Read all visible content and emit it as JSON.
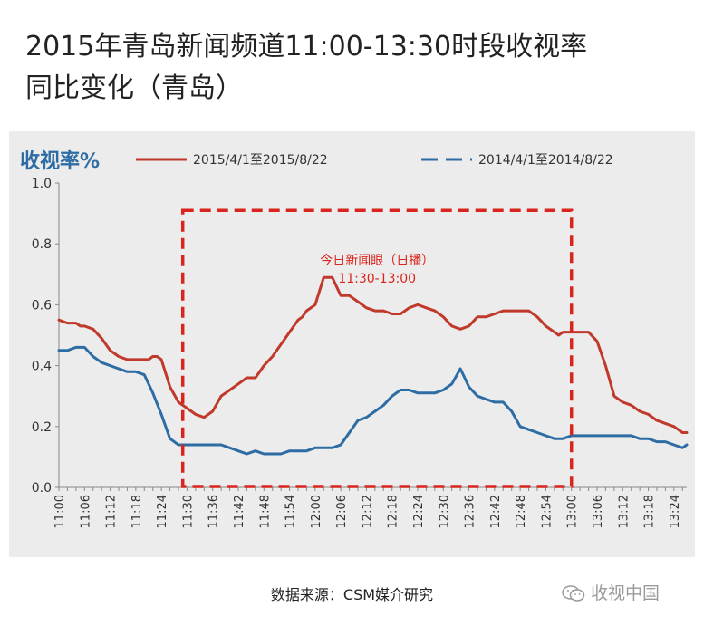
{
  "header": {
    "title_line1": "2015年青岛新闻频道11:00-13:30时段收视率",
    "title_line2": "同比变化（青岛）"
  },
  "chart_data": {
    "type": "line",
    "ylabel": "收视率%",
    "ylim": [
      0,
      1.0
    ],
    "yticks": [
      "0.0",
      "0.2",
      "0.4",
      "0.6",
      "0.8",
      "1.0"
    ],
    "xlabels": [
      "11:00",
      "11:06",
      "11:12",
      "11:18",
      "11:24",
      "11:30",
      "11:36",
      "11:42",
      "11:48",
      "11:54",
      "12:00",
      "12:06",
      "12:12",
      "12:18",
      "12:24",
      "12:30",
      "12:36",
      "12:42",
      "12:48",
      "12:54",
      "13:00",
      "13:06",
      "13:12",
      "13:18",
      "13:24"
    ],
    "x_start_minute": 0,
    "x_end_minute": 147,
    "series": [
      {
        "name": "2015/4/1至2015/8/22",
        "color": "#c0392b",
        "style": "solid",
        "x": [
          0,
          2,
          4,
          5,
          6,
          8,
          10,
          12,
          14,
          16,
          18,
          20,
          21,
          22,
          23,
          24,
          26,
          28,
          30,
          32,
          34,
          36,
          38,
          40,
          42,
          44,
          46,
          48,
          50,
          52,
          54,
          56,
          57,
          58,
          60,
          62,
          64,
          66,
          68,
          70,
          72,
          74,
          76,
          78,
          80,
          82,
          84,
          86,
          88,
          90,
          92,
          94,
          96,
          98,
          100,
          102,
          104,
          106,
          108,
          110,
          112,
          114,
          116,
          117,
          118,
          120,
          122,
          124,
          126,
          128,
          130,
          132,
          134,
          136,
          138,
          140,
          142,
          144,
          146,
          147
        ],
        "y": [
          0.55,
          0.54,
          0.54,
          0.53,
          0.53,
          0.52,
          0.49,
          0.45,
          0.43,
          0.42,
          0.42,
          0.42,
          0.42,
          0.43,
          0.43,
          0.42,
          0.33,
          0.28,
          0.26,
          0.24,
          0.23,
          0.25,
          0.3,
          0.32,
          0.34,
          0.36,
          0.36,
          0.4,
          0.43,
          0.47,
          0.51,
          0.55,
          0.56,
          0.58,
          0.6,
          0.69,
          0.69,
          0.63,
          0.63,
          0.61,
          0.59,
          0.58,
          0.58,
          0.57,
          0.57,
          0.59,
          0.6,
          0.59,
          0.58,
          0.56,
          0.53,
          0.52,
          0.53,
          0.56,
          0.56,
          0.57,
          0.58,
          0.58,
          0.58,
          0.58,
          0.56,
          0.53,
          0.51,
          0.5,
          0.51,
          0.51,
          0.51,
          0.51,
          0.48,
          0.4,
          0.3,
          0.28,
          0.27,
          0.25,
          0.24,
          0.22,
          0.21,
          0.2,
          0.18,
          0.18
        ]
      },
      {
        "name": "2014/4/1至2014/8/22",
        "color": "#2e6da4",
        "style": "dashed",
        "x": [
          0,
          2,
          4,
          6,
          8,
          10,
          12,
          14,
          16,
          18,
          20,
          22,
          24,
          26,
          28,
          30,
          32,
          34,
          36,
          38,
          40,
          42,
          44,
          46,
          48,
          50,
          52,
          54,
          56,
          58,
          60,
          62,
          64,
          66,
          68,
          70,
          72,
          74,
          76,
          78,
          80,
          82,
          84,
          86,
          88,
          90,
          92,
          94,
          96,
          98,
          100,
          102,
          104,
          106,
          108,
          110,
          112,
          114,
          116,
          118,
          120,
          122,
          124,
          126,
          128,
          130,
          132,
          134,
          136,
          138,
          140,
          142,
          144,
          146,
          147
        ],
        "y": [
          0.45,
          0.45,
          0.46,
          0.46,
          0.43,
          0.41,
          0.4,
          0.39,
          0.38,
          0.38,
          0.37,
          0.31,
          0.24,
          0.16,
          0.14,
          0.14,
          0.14,
          0.14,
          0.14,
          0.14,
          0.13,
          0.12,
          0.11,
          0.12,
          0.11,
          0.11,
          0.11,
          0.12,
          0.12,
          0.12,
          0.13,
          0.13,
          0.13,
          0.14,
          0.18,
          0.22,
          0.23,
          0.25,
          0.27,
          0.3,
          0.32,
          0.32,
          0.31,
          0.31,
          0.31,
          0.32,
          0.34,
          0.39,
          0.33,
          0.3,
          0.29,
          0.28,
          0.28,
          0.25,
          0.2,
          0.19,
          0.18,
          0.17,
          0.16,
          0.16,
          0.17,
          0.17,
          0.17,
          0.17,
          0.17,
          0.17,
          0.17,
          0.17,
          0.16,
          0.16,
          0.15,
          0.15,
          0.14,
          0.13,
          0.14
        ]
      }
    ],
    "annotation": {
      "label_line1": "今日新闻眼（日播）",
      "label_line2": "11:30-13:00",
      "x_start_minute": 29,
      "x_end_minute": 120,
      "y_top": 0.91,
      "color": "#d9251d"
    },
    "grid": false,
    "legend": "top"
  },
  "footer": {
    "source": "数据来源：CSM媒介研究",
    "watermark": "收视中国"
  }
}
